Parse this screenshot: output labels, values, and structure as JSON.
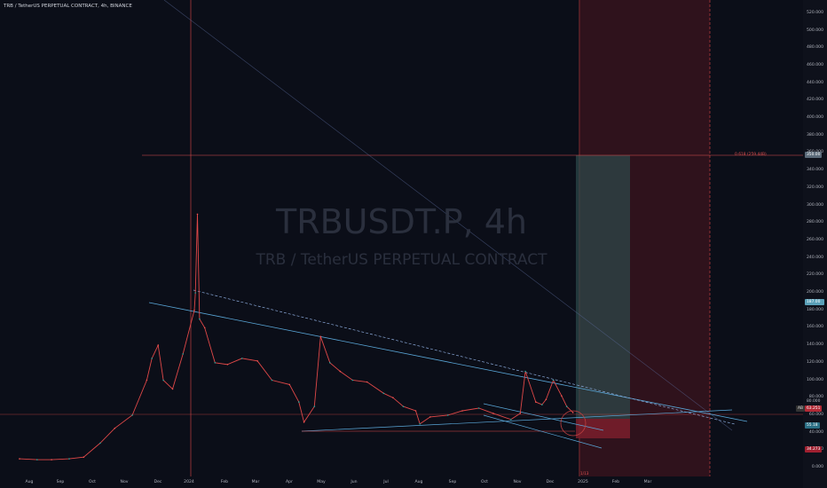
{
  "header": {
    "title": "TRB / TetherUS PERPETUAL CONTRACT, 4h, BINANCE"
  },
  "watermark": {
    "symbol": "TRBUSDT.P, 4h",
    "name": "TRB / TetherUS PERPETUAL CONTRACT"
  },
  "annotations": {
    "fib_label": "0.618 (259.44B)",
    "date_marker": "1/13"
  },
  "price_tags": {
    "fib": "350.00",
    "target": "187.00",
    "high": "80.000",
    "last": "63.251",
    "entry": "55.18",
    "stop": "34.273",
    "badge": "AB"
  },
  "colors": {
    "background": "#0b0e18",
    "price_line": "#e04848",
    "trend_line": "#5aa7d8",
    "profit_zone": "#2c4a4c",
    "loss_zone": "#5c1822"
  },
  "chart_data": {
    "type": "line",
    "title": "",
    "xlabel": "",
    "ylabel": "",
    "ylim": [
      0,
      530
    ],
    "x_ticks": [
      "Aug",
      "Sep",
      "Oct",
      "Nov",
      "Dec",
      "2024",
      "Feb",
      "Mar",
      "Apr",
      "May",
      "Jun",
      "Jul",
      "Aug",
      "Sep",
      "Oct",
      "Nov",
      "Dec",
      "2025",
      "Feb",
      "Mar"
    ],
    "y_ticks": [
      "0.000",
      "20.000",
      "40.000",
      "60.000",
      "80.000",
      "100.000",
      "120.000",
      "140.000",
      "160.000",
      "180.000",
      "200.000",
      "220.000",
      "240.000",
      "260.000",
      "280.000",
      "300.000",
      "320.000",
      "340.000",
      "360.000",
      "380.000",
      "400.000",
      "420.000",
      "440.000",
      "460.000",
      "480.000",
      "500.000",
      "520.000"
    ],
    "series": [
      {
        "x": [
          "2023-07-15",
          "2023-08-01",
          "2023-08-15",
          "2023-09-01",
          "2023-09-15",
          "2023-10-01",
          "2023-10-15",
          "2023-11-01",
          "2023-11-15",
          "2023-11-20",
          "2023-11-26",
          "2023-12-01",
          "2023-12-10",
          "2023-12-20",
          "2023-12-31",
          "2024-01-01",
          "2024-01-03",
          "2024-01-05",
          "2024-01-10",
          "2024-01-20",
          "2024-02-01",
          "2024-02-15",
          "2024-03-01",
          "2024-03-15",
          "2024-04-01",
          "2024-04-10",
          "2024-04-15",
          "2024-04-25",
          "2024-05-01",
          "2024-05-10",
          "2024-05-20",
          "2024-06-01",
          "2024-06-15",
          "2024-07-01",
          "2024-07-10",
          "2024-07-20",
          "2024-08-01",
          "2024-08-05",
          "2024-08-15",
          "2024-09-01",
          "2024-09-15",
          "2024-10-01",
          "2024-10-15",
          "2024-11-01",
          "2024-11-10",
          "2024-11-15",
          "2024-11-25",
          "2024-12-01",
          "2024-12-05",
          "2024-12-12",
          "2024-12-20",
          "2024-12-25",
          "2024-12-31"
        ],
        "values": [
          10,
          9,
          9,
          10,
          12,
          28,
          45,
          60,
          100,
          125,
          140,
          100,
          90,
          130,
          180,
          200,
          290,
          170,
          160,
          120,
          118,
          125,
          122,
          100,
          95,
          75,
          52,
          70,
          150,
          120,
          110,
          100,
          98,
          85,
          80,
          70,
          65,
          50,
          58,
          60,
          65,
          68,
          62,
          55,
          62,
          110,
          75,
          72,
          78,
          100,
          82,
          70,
          63
        ]
      }
    ],
    "fib_level": 350,
    "entry_price": 55.18,
    "target_price": 187,
    "stop_price": 34.273,
    "last_price": 63.251,
    "grid": false,
    "legend": "none"
  }
}
